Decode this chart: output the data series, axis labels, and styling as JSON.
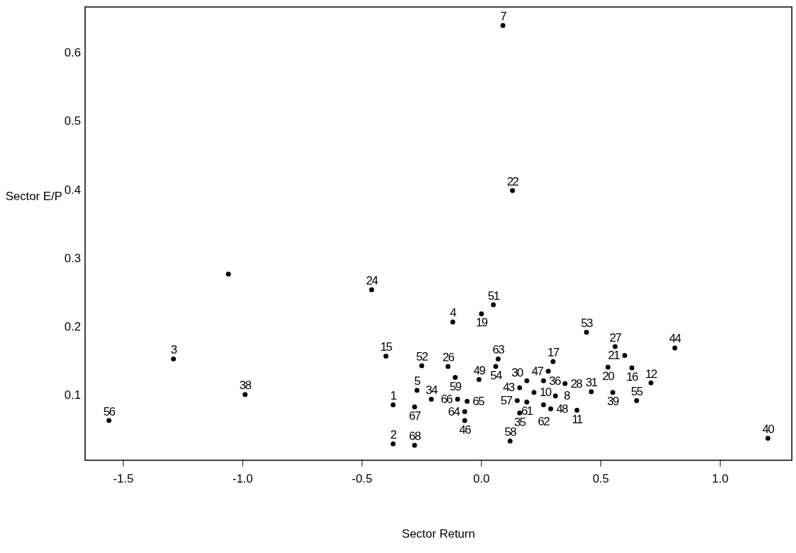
{
  "chart_data": {
    "type": "scatter",
    "xlabel": "Sector Return",
    "ylabel": "Sector E/P",
    "xlim": [
      -1.66,
      1.3
    ],
    "ylim": [
      0.005,
      0.667
    ],
    "xticks": [
      {
        "value": -1.5,
        "label": "-1.5"
      },
      {
        "value": -1,
        "label": "-1.0"
      },
      {
        "value": -0.5,
        "label": "-0.5"
      },
      {
        "value": 0,
        "label": "0.0"
      },
      {
        "value": 0.5,
        "label": "0.5"
      },
      {
        "value": 1,
        "label": "1.0"
      }
    ],
    "yticks": [
      0.1,
      0.2,
      0.3,
      0.4,
      0.5,
      0.6
    ],
    "grid": false,
    "marker": "circle",
    "series": [
      {
        "color": "#000000",
        "x": [
          0.09,
          0.13,
          -0.46,
          -1.06,
          0.05,
          0.0,
          -0.12,
          0.44,
          0.56,
          0.81,
          0.6,
          -0.4,
          -1.29,
          0.3,
          0.07,
          0.53,
          0.63,
          0.06,
          -0.25,
          -0.14,
          0.28,
          -0.11,
          -0.01,
          0.26,
          0.19,
          0.35,
          0.71,
          0.16,
          0.22,
          0.46,
          0.55,
          -0.99,
          -0.27,
          -0.21,
          -0.1,
          -0.06,
          0.31,
          0.65,
          0.15,
          0.19,
          -0.28,
          -0.37,
          0.26,
          0.29,
          0.4,
          0.16,
          -0.07,
          -0.07,
          -1.56,
          0.12,
          -0.37,
          -0.28,
          1.2
        ],
        "values": [
          0.64,
          0.399,
          0.254,
          0.277,
          0.232,
          0.219,
          0.207,
          0.192,
          0.171,
          0.169,
          0.158,
          0.157,
          0.153,
          0.149,
          0.153,
          0.141,
          0.14,
          0.142,
          0.143,
          0.142,
          0.135,
          0.126,
          0.123,
          0.121,
          0.121,
          0.117,
          0.118,
          0.111,
          0.104,
          0.105,
          0.104,
          0.101,
          0.107,
          0.094,
          0.094,
          0.091,
          0.099,
          0.092,
          0.092,
          0.09,
          0.083,
          0.086,
          0.086,
          0.08,
          0.078,
          0.074,
          0.076,
          0.063,
          0.063,
          0.033,
          0.029,
          0.027,
          0.037
        ]
      }
    ],
    "annotations": [
      {
        "text": "7",
        "x": 0.09,
        "y": 0.64
      },
      {
        "text": "22",
        "x": 0.13,
        "y": 0.399
      },
      {
        "text": "24",
        "x": -0.46,
        "y": 0.254
      },
      {
        "text": "51",
        "x": 0.05,
        "y": 0.232
      },
      {
        "text": "19",
        "x": 0.0,
        "y": 0.219
      },
      {
        "text": "4",
        "x": -0.12,
        "y": 0.207
      },
      {
        "text": "53",
        "x": 0.44,
        "y": 0.192
      },
      {
        "text": "27",
        "x": 0.56,
        "y": 0.171
      },
      {
        "text": "44",
        "x": 0.81,
        "y": 0.169
      },
      {
        "text": "21",
        "x": 0.6,
        "y": 0.158
      },
      {
        "text": "15",
        "x": -0.4,
        "y": 0.157
      },
      {
        "text": "3",
        "x": -1.29,
        "y": 0.153
      },
      {
        "text": "17",
        "x": 0.3,
        "y": 0.149
      },
      {
        "text": "63",
        "x": 0.07,
        "y": 0.153
      },
      {
        "text": "20",
        "x": 0.53,
        "y": 0.141
      },
      {
        "text": "16",
        "x": 0.63,
        "y": 0.14
      },
      {
        "text": "54",
        "x": 0.06,
        "y": 0.142
      },
      {
        "text": "52",
        "x": -0.25,
        "y": 0.143
      },
      {
        "text": "26",
        "x": -0.14,
        "y": 0.142
      },
      {
        "text": "47",
        "x": 0.28,
        "y": 0.135
      },
      {
        "text": "59",
        "x": -0.11,
        "y": 0.126
      },
      {
        "text": "49",
        "x": -0.01,
        "y": 0.123
      },
      {
        "text": "36",
        "x": 0.26,
        "y": 0.121
      },
      {
        "text": "30",
        "x": 0.19,
        "y": 0.121
      },
      {
        "text": "28",
        "x": 0.35,
        "y": 0.117
      },
      {
        "text": "12",
        "x": 0.71,
        "y": 0.118
      },
      {
        "text": "43",
        "x": 0.16,
        "y": 0.111
      },
      {
        "text": "10",
        "x": 0.22,
        "y": 0.104
      },
      {
        "text": "31",
        "x": 0.46,
        "y": 0.105
      },
      {
        "text": "39",
        "x": 0.55,
        "y": 0.104
      },
      {
        "text": "38",
        "x": -0.99,
        "y": 0.101
      },
      {
        "text": "5",
        "x": -0.27,
        "y": 0.107
      },
      {
        "text": "34",
        "x": -0.21,
        "y": 0.094
      },
      {
        "text": "66",
        "x": -0.1,
        "y": 0.094
      },
      {
        "text": "65",
        "x": -0.06,
        "y": 0.091
      },
      {
        "text": "8",
        "x": 0.31,
        "y": 0.099
      },
      {
        "text": "55",
        "x": 0.65,
        "y": 0.092
      },
      {
        "text": "57",
        "x": 0.15,
        "y": 0.092
      },
      {
        "text": "61",
        "x": 0.19,
        "y": 0.09
      },
      {
        "text": "67",
        "x": -0.28,
        "y": 0.083
      },
      {
        "text": "1",
        "x": -0.37,
        "y": 0.086
      },
      {
        "text": "62",
        "x": 0.26,
        "y": 0.086
      },
      {
        "text": "48",
        "x": 0.29,
        "y": 0.08
      },
      {
        "text": "11",
        "x": 0.4,
        "y": 0.078
      },
      {
        "text": "35",
        "x": 0.16,
        "y": 0.074
      },
      {
        "text": "64",
        "x": -0.07,
        "y": 0.076
      },
      {
        "text": "46",
        "x": -0.07,
        "y": 0.063
      },
      {
        "text": "56",
        "x": -1.56,
        "y": 0.063
      },
      {
        "text": "58",
        "x": 0.12,
        "y": 0.033
      },
      {
        "text": "2",
        "x": -0.37,
        "y": 0.029
      },
      {
        "text": "68",
        "x": -0.28,
        "y": 0.027
      },
      {
        "text": "40",
        "x": 1.2,
        "y": 0.037
      }
    ]
  }
}
